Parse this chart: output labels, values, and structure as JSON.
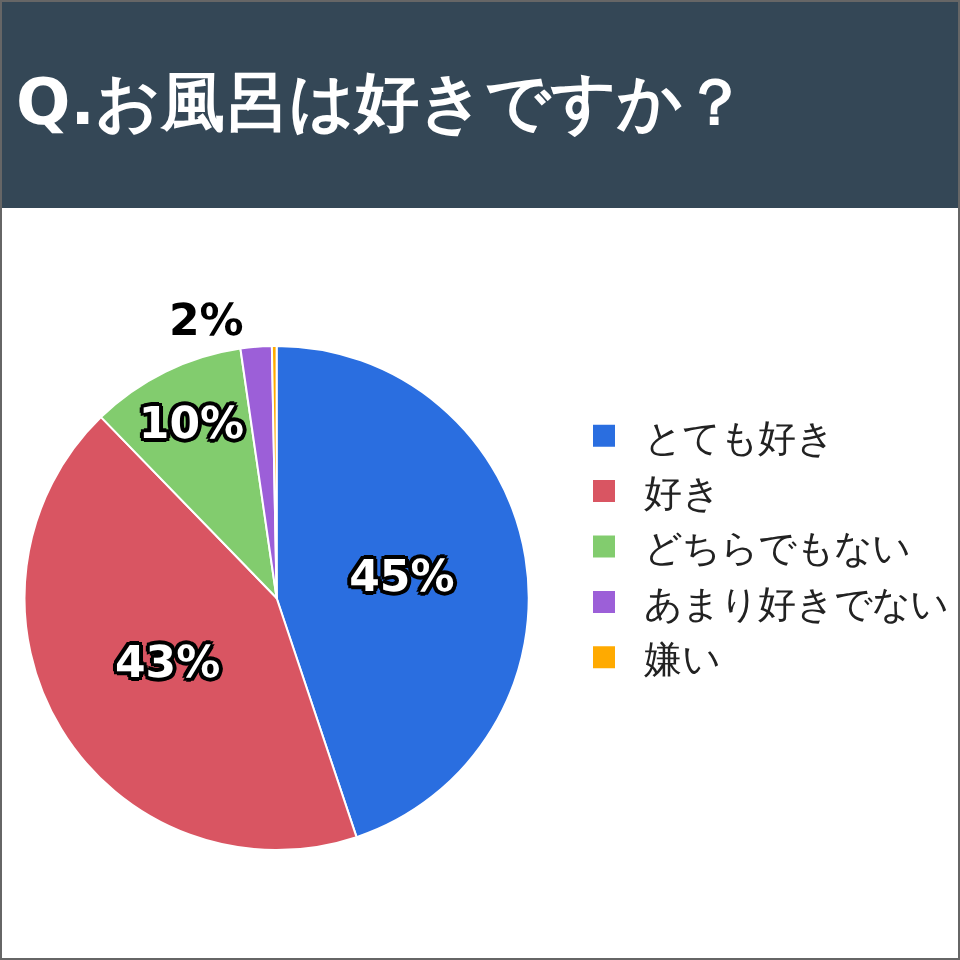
{
  "chart_data": {
    "type": "pie",
    "title": "Q.お風呂は好きですか？",
    "categories": [
      "とても好き",
      "好き",
      "どちらでもない",
      "あまり好きでない",
      "嫌い"
    ],
    "values": [
      45,
      43,
      10,
      2,
      0.3
    ],
    "colors": [
      "#2a6ee0",
      "#d95562",
      "#82cc6e",
      "#9c5fd8",
      "#ffaa00"
    ],
    "value_labels": [
      "45%",
      "43%",
      "10%",
      "2%",
      null
    ],
    "legend": "right"
  }
}
